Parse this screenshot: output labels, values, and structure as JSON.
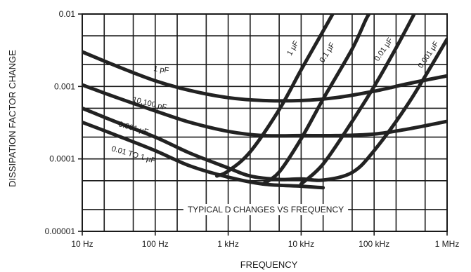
{
  "chart_data": {
    "type": "line",
    "title": "",
    "annotation": "TYPICAL D CHANGES VS FREQUENCY",
    "xlabel": "FREQUENCY",
    "ylabel": "DISSIPATION FACTOR CHANGE",
    "x_scale": "log",
    "y_scale": "log",
    "xlim": [
      10,
      1000000
    ],
    "ylim": [
      1e-05,
      0.01
    ],
    "grid": true,
    "x_ticks": [
      {
        "value": 10,
        "label": "10 Hz"
      },
      {
        "value": 100,
        "label": "100 Hz"
      },
      {
        "value": 1000,
        "label": "1 kHz"
      },
      {
        "value": 10000,
        "label": "10 kHz"
      },
      {
        "value": 100000,
        "label": "100 kHz"
      },
      {
        "value": 1000000,
        "label": "1 MHz"
      }
    ],
    "y_ticks": [
      {
        "value": 0.01,
        "label": "0.01"
      },
      {
        "value": 0.001,
        "label": "0.001"
      },
      {
        "value": 0.0001,
        "label": "0.0001"
      },
      {
        "value": 1e-05,
        "label": "0.00001"
      }
    ],
    "series": [
      {
        "name": "1 pF",
        "points": [
          [
            10,
            0.003
          ],
          [
            30,
            0.0019
          ],
          [
            100,
            0.0012
          ],
          [
            300,
            0.00088
          ],
          [
            1000,
            0.0007
          ],
          [
            3000,
            0.00064
          ],
          [
            10000,
            0.00064
          ],
          [
            30000,
            0.0007
          ],
          [
            100000,
            0.00086
          ],
          [
            300000,
            0.0011
          ],
          [
            1000000,
            0.0014
          ]
        ]
      },
      {
        "name": "10,100 pF",
        "points": [
          [
            10,
            0.00105
          ],
          [
            30,
            0.0007
          ],
          [
            100,
            0.00046
          ],
          [
            300,
            0.00032
          ],
          [
            1000,
            0.00024
          ],
          [
            3000,
            0.00021
          ],
          [
            10000,
            0.00021
          ],
          [
            30000,
            0.00021
          ],
          [
            100000,
            0.00022
          ],
          [
            300000,
            0.00026
          ],
          [
            1000000,
            0.00033
          ]
        ]
      },
      {
        "name": "0.001 μF",
        "points": [
          [
            10,
            0.0005
          ],
          [
            30,
            0.00032
          ],
          [
            100,
            0.0002
          ],
          [
            300,
            0.00012
          ],
          [
            1000,
            7.5e-05
          ],
          [
            2000,
            5.8e-05
          ],
          [
            5000,
            5.2e-05
          ],
          [
            10000,
            5.3e-05
          ],
          [
            20000,
            5.1e-05
          ],
          [
            50000,
            6.5e-05
          ],
          [
            100000,
            0.00013
          ],
          [
            300000,
            0.0006
          ],
          [
            1000000,
            0.0045
          ]
        ]
      },
      {
        "name": "0.01 TO 1 μF",
        "points": [
          [
            10,
            0.00032
          ],
          [
            30,
            0.00021
          ],
          [
            100,
            0.00013
          ],
          [
            300,
            8e-05
          ],
          [
            1000,
            5.6e-05
          ],
          [
            3000,
            4.5e-05
          ],
          [
            10000,
            4.2e-05
          ],
          [
            20000,
            4e-05
          ]
        ]
      },
      {
        "name": "1 μF",
        "points": [
          [
            700,
            5.8e-05
          ],
          [
            1000,
            6.8e-05
          ],
          [
            2000,
            0.000125
          ],
          [
            5000,
            0.00048
          ],
          [
            10000,
            0.0017
          ],
          [
            20000,
            0.0058
          ],
          [
            30000,
            0.012
          ]
        ]
      },
      {
        "name": "0.1 μF",
        "points": [
          [
            3000,
            4.5e-05
          ],
          [
            5000,
            6.6e-05
          ],
          [
            10000,
            0.00019
          ],
          [
            20000,
            0.00067
          ],
          [
            50000,
            0.0033
          ],
          [
            80000,
            0.009
          ],
          [
            100000,
            0.012
          ]
        ]
      },
      {
        "name": "0.01 μF",
        "points": [
          [
            10000,
            4.5e-05
          ],
          [
            20000,
            8.5e-05
          ],
          [
            50000,
            0.00033
          ],
          [
            100000,
            0.001
          ],
          [
            200000,
            0.0034
          ],
          [
            350000,
            0.0098
          ]
        ]
      }
    ],
    "curve_labels": [
      {
        "series": "1 pF",
        "text": "1 pF"
      },
      {
        "series": "10,100 pF",
        "text": "10,100 pF"
      },
      {
        "series": "0.001 μF",
        "text": "0.001 μF"
      },
      {
        "series": "0.01 TO 1 μF",
        "text": "0.01 TO 1 μF"
      },
      {
        "series": "1 μF",
        "text": "1 μF"
      },
      {
        "series": "0.1 μF",
        "text": "0.1 μF"
      },
      {
        "series": "0.01 μF",
        "text": "0.01 μF"
      },
      {
        "series": "0.001 μF",
        "text": "0.001 μF"
      }
    ]
  }
}
